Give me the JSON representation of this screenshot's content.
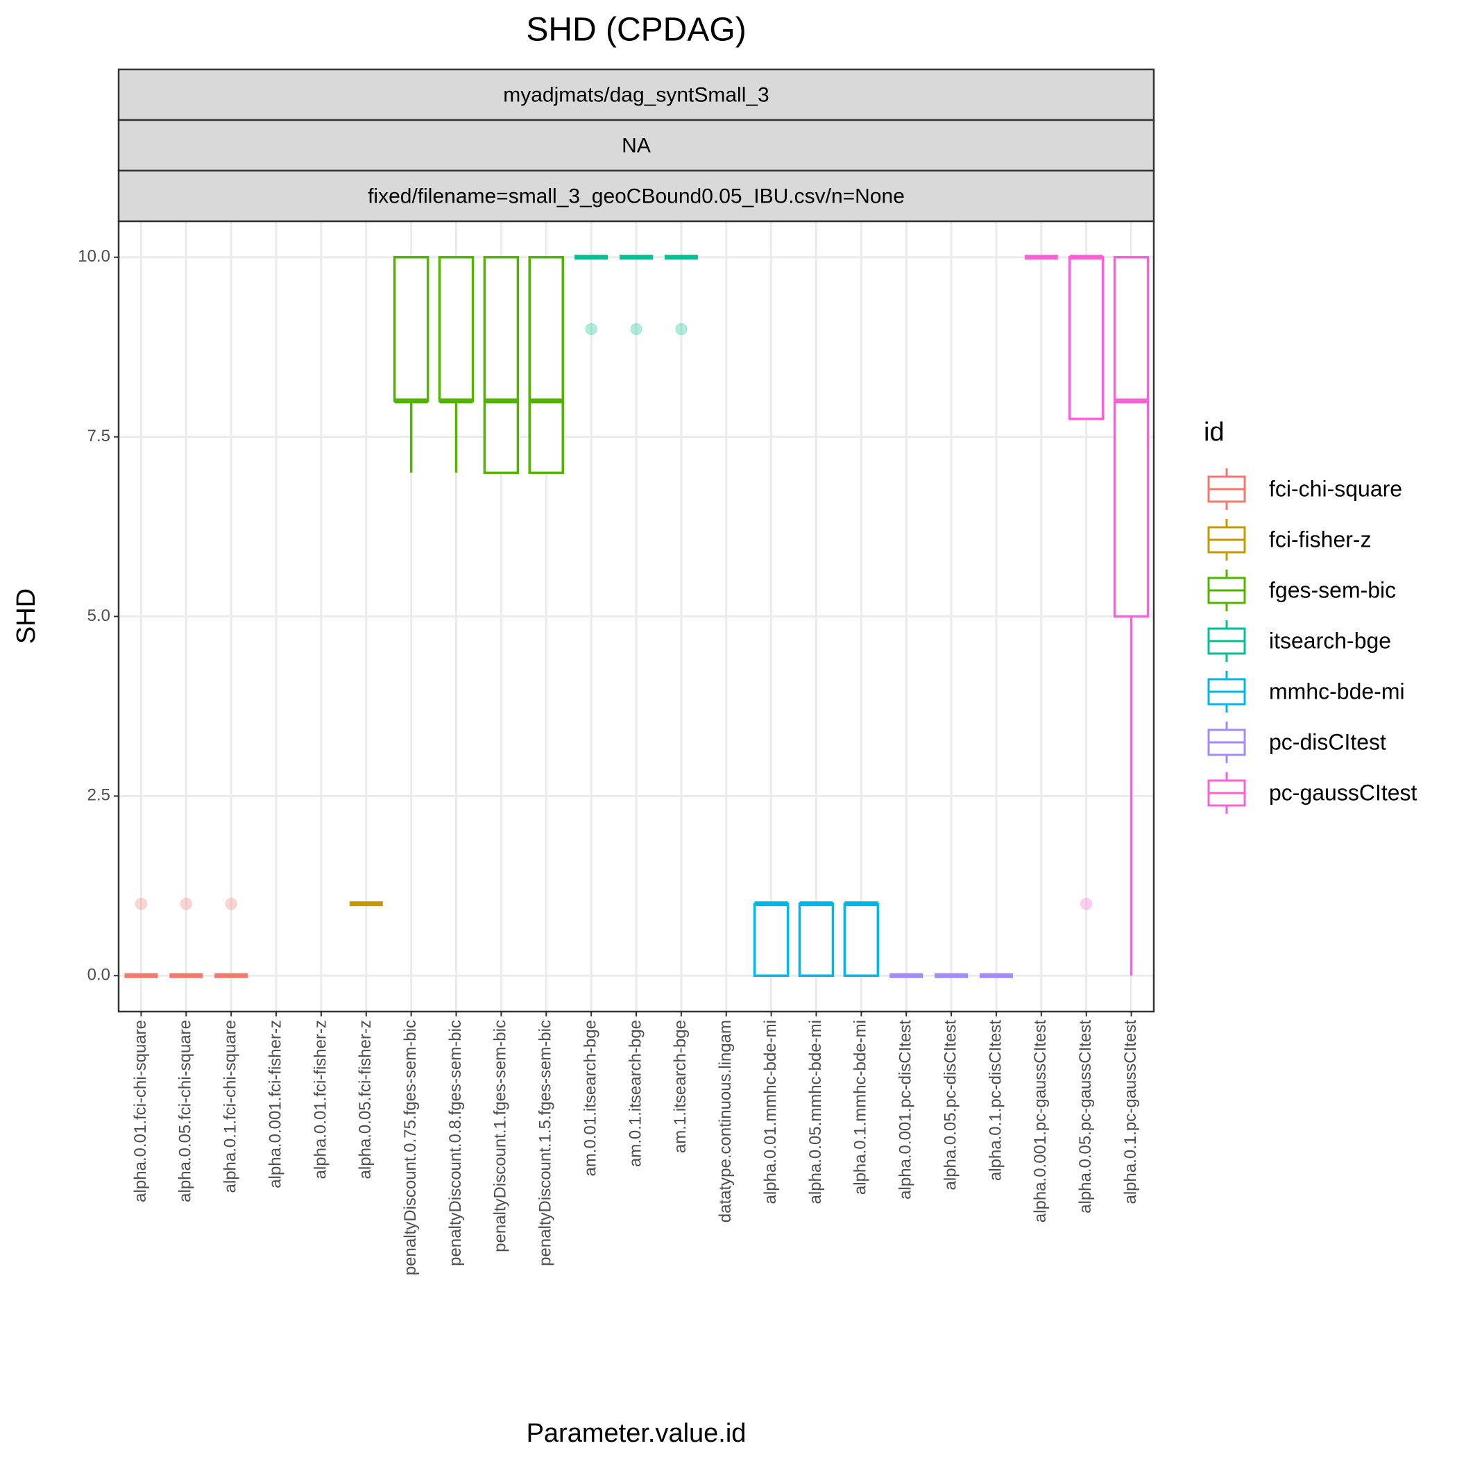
{
  "chart_data": {
    "type": "box",
    "title": "SHD (CPDAG)",
    "strips": [
      "myadjmats/dag_syntSmall_3",
      "NA",
      "fixed/filename=small_3_geoCBound0.05_IBU.csv/n=None"
    ],
    "x_label": "Parameter.value.id",
    "y_label": "SHD",
    "legend_title": "id",
    "categories": [
      "alpha.0.01.fci-chi-square",
      "alpha.0.05.fci-chi-square",
      "alpha.0.1.fci-chi-square",
      "alpha.0.001.fci-fisher-z",
      "alpha.0.01.fci-fisher-z",
      "alpha.0.05.fci-fisher-z",
      "penaltyDiscount.0.75.fges-sem-bic",
      "penaltyDiscount.0.8.fges-sem-bic",
      "penaltyDiscount.1.fges-sem-bic",
      "penaltyDiscount.1.5.fges-sem-bic",
      "am.0.01.itsearch-bge",
      "am.0.1.itsearch-bge",
      "am.1.itsearch-bge",
      "datatype.continuous.lingam",
      "alpha.0.01.mmhc-bde-mi",
      "alpha.0.05.mmhc-bde-mi",
      "alpha.0.1.mmhc-bde-mi",
      "alpha.0.001.pc-disCItest",
      "alpha.0.05.pc-disCItest",
      "alpha.0.1.pc-disCItest",
      "alpha.0.001.pc-gaussCItest",
      "alpha.0.05.pc-gaussCItest",
      "alpha.0.1.pc-gaussCItest"
    ],
    "ylim": [
      -0.5,
      10.5
    ],
    "yticks": [
      {
        "value": 0,
        "label": "0.0"
      },
      {
        "value": 2.5,
        "label": "2.5"
      },
      {
        "value": 5,
        "label": "5.0"
      },
      {
        "value": 7.5,
        "label": "7.5"
      },
      {
        "value": 10,
        "label": "10.0"
      }
    ],
    "grid": true,
    "legend_position": "right",
    "series": [
      {
        "name": "fci-chi-square",
        "color": "#F8766D",
        "min": [
          0,
          0,
          0,
          null,
          null,
          null,
          null,
          null,
          null,
          null,
          null,
          null,
          null,
          null,
          null,
          null,
          null,
          null,
          null,
          null,
          null,
          null,
          null
        ],
        "q1": [
          0,
          0,
          0,
          null,
          null,
          null,
          null,
          null,
          null,
          null,
          null,
          null,
          null,
          null,
          null,
          null,
          null,
          null,
          null,
          null,
          null,
          null,
          null
        ],
        "median": [
          0,
          0,
          0,
          null,
          null,
          null,
          null,
          null,
          null,
          null,
          null,
          null,
          null,
          null,
          null,
          null,
          null,
          null,
          null,
          null,
          null,
          null,
          null
        ],
        "q3": [
          0,
          0,
          0,
          null,
          null,
          null,
          null,
          null,
          null,
          null,
          null,
          null,
          null,
          null,
          null,
          null,
          null,
          null,
          null,
          null,
          null,
          null,
          null
        ],
        "max": [
          0,
          0,
          0,
          null,
          null,
          null,
          null,
          null,
          null,
          null,
          null,
          null,
          null,
          null,
          null,
          null,
          null,
          null,
          null,
          null,
          null,
          null,
          null
        ],
        "outliers": [
          [
            1
          ],
          [
            1
          ],
          [
            1
          ],
          null,
          null,
          null,
          null,
          null,
          null,
          null,
          null,
          null,
          null,
          null,
          null,
          null,
          null,
          null,
          null,
          null,
          null,
          null,
          null
        ]
      },
      {
        "name": "fci-fisher-z",
        "color": "#C49A00",
        "min": [
          null,
          null,
          null,
          null,
          null,
          1,
          null,
          null,
          null,
          null,
          null,
          null,
          null,
          null,
          null,
          null,
          null,
          null,
          null,
          null,
          null,
          null,
          null
        ],
        "q1": [
          null,
          null,
          null,
          null,
          null,
          1,
          null,
          null,
          null,
          null,
          null,
          null,
          null,
          null,
          null,
          null,
          null,
          null,
          null,
          null,
          null,
          null,
          null
        ],
        "median": [
          null,
          null,
          null,
          null,
          null,
          1,
          null,
          null,
          null,
          null,
          null,
          null,
          null,
          null,
          null,
          null,
          null,
          null,
          null,
          null,
          null,
          null,
          null
        ],
        "q3": [
          null,
          null,
          null,
          null,
          null,
          1,
          null,
          null,
          null,
          null,
          null,
          null,
          null,
          null,
          null,
          null,
          null,
          null,
          null,
          null,
          null,
          null,
          null
        ],
        "max": [
          null,
          null,
          null,
          null,
          null,
          1,
          null,
          null,
          null,
          null,
          null,
          null,
          null,
          null,
          null,
          null,
          null,
          null,
          null,
          null,
          null,
          null,
          null
        ],
        "outliers": [
          null,
          null,
          null,
          null,
          null,
          [],
          null,
          null,
          null,
          null,
          null,
          null,
          null,
          null,
          null,
          null,
          null,
          null,
          null,
          null,
          null,
          null,
          null
        ]
      },
      {
        "name": "fges-sem-bic",
        "color": "#53B400",
        "min": [
          null,
          null,
          null,
          null,
          null,
          null,
          7,
          7,
          7,
          7,
          null,
          null,
          null,
          null,
          null,
          null,
          null,
          null,
          null,
          null,
          null,
          null,
          null
        ],
        "q1": [
          null,
          null,
          null,
          null,
          null,
          null,
          8,
          8,
          7,
          7,
          null,
          null,
          null,
          null,
          null,
          null,
          null,
          null,
          null,
          null,
          null,
          null,
          null
        ],
        "median": [
          null,
          null,
          null,
          null,
          null,
          null,
          8,
          8,
          8,
          8,
          null,
          null,
          null,
          null,
          null,
          null,
          null,
          null,
          null,
          null,
          null,
          null,
          null
        ],
        "q3": [
          null,
          null,
          null,
          null,
          null,
          null,
          10,
          10,
          10,
          10,
          null,
          null,
          null,
          null,
          null,
          null,
          null,
          null,
          null,
          null,
          null,
          null,
          null
        ],
        "max": [
          null,
          null,
          null,
          null,
          null,
          null,
          10,
          10,
          10,
          10,
          null,
          null,
          null,
          null,
          null,
          null,
          null,
          null,
          null,
          null,
          null,
          null,
          null
        ],
        "outliers": [
          null,
          null,
          null,
          null,
          null,
          null,
          [],
          [],
          [],
          [],
          null,
          null,
          null,
          null,
          null,
          null,
          null,
          null,
          null,
          null,
          null,
          null,
          null
        ]
      },
      {
        "name": "itsearch-bge",
        "color": "#00C094",
        "min": [
          null,
          null,
          null,
          null,
          null,
          null,
          null,
          null,
          null,
          null,
          10,
          10,
          10,
          null,
          null,
          null,
          null,
          null,
          null,
          null,
          null,
          null,
          null
        ],
        "q1": [
          null,
          null,
          null,
          null,
          null,
          null,
          null,
          null,
          null,
          null,
          10,
          10,
          10,
          null,
          null,
          null,
          null,
          null,
          null,
          null,
          null,
          null,
          null
        ],
        "median": [
          null,
          null,
          null,
          null,
          null,
          null,
          null,
          null,
          null,
          null,
          10,
          10,
          10,
          null,
          null,
          null,
          null,
          null,
          null,
          null,
          null,
          null,
          null
        ],
        "q3": [
          null,
          null,
          null,
          null,
          null,
          null,
          null,
          null,
          null,
          null,
          10,
          10,
          10,
          null,
          null,
          null,
          null,
          null,
          null,
          null,
          null,
          null,
          null
        ],
        "max": [
          null,
          null,
          null,
          null,
          null,
          null,
          null,
          null,
          null,
          null,
          10,
          10,
          10,
          null,
          null,
          null,
          null,
          null,
          null,
          null,
          null,
          null,
          null
        ],
        "outliers": [
          null,
          null,
          null,
          null,
          null,
          null,
          null,
          null,
          null,
          null,
          [
            9
          ],
          [
            9
          ],
          [
            9
          ],
          null,
          null,
          null,
          null,
          null,
          null,
          null,
          null,
          null,
          null
        ]
      },
      {
        "name": "mmhc-bde-mi",
        "color": "#00B6EB",
        "min": [
          null,
          null,
          null,
          null,
          null,
          null,
          null,
          null,
          null,
          null,
          null,
          null,
          null,
          null,
          0,
          0,
          0,
          null,
          null,
          null,
          null,
          null,
          null
        ],
        "q1": [
          null,
          null,
          null,
          null,
          null,
          null,
          null,
          null,
          null,
          null,
          null,
          null,
          null,
          null,
          0,
          0,
          0,
          null,
          null,
          null,
          null,
          null,
          null
        ],
        "median": [
          null,
          null,
          null,
          null,
          null,
          null,
          null,
          null,
          null,
          null,
          null,
          null,
          null,
          null,
          1,
          1,
          1,
          null,
          null,
          null,
          null,
          null,
          null
        ],
        "q3": [
          null,
          null,
          null,
          null,
          null,
          null,
          null,
          null,
          null,
          null,
          null,
          null,
          null,
          null,
          1,
          1,
          1,
          null,
          null,
          null,
          null,
          null,
          null
        ],
        "max": [
          null,
          null,
          null,
          null,
          null,
          null,
          null,
          null,
          null,
          null,
          null,
          null,
          null,
          null,
          1,
          1,
          1,
          null,
          null,
          null,
          null,
          null,
          null
        ],
        "outliers": [
          null,
          null,
          null,
          null,
          null,
          null,
          null,
          null,
          null,
          null,
          null,
          null,
          null,
          null,
          [],
          [],
          [],
          null,
          null,
          null,
          null,
          null,
          null
        ]
      },
      {
        "name": "pc-disCItest",
        "color": "#A58AFF",
        "min": [
          null,
          null,
          null,
          null,
          null,
          null,
          null,
          null,
          null,
          null,
          null,
          null,
          null,
          null,
          null,
          null,
          null,
          0,
          0,
          0,
          null,
          null,
          null
        ],
        "q1": [
          null,
          null,
          null,
          null,
          null,
          null,
          null,
          null,
          null,
          null,
          null,
          null,
          null,
          null,
          null,
          null,
          null,
          0,
          0,
          0,
          null,
          null,
          null
        ],
        "median": [
          null,
          null,
          null,
          null,
          null,
          null,
          null,
          null,
          null,
          null,
          null,
          null,
          null,
          null,
          null,
          null,
          null,
          0,
          0,
          0,
          null,
          null,
          null
        ],
        "q3": [
          null,
          null,
          null,
          null,
          null,
          null,
          null,
          null,
          null,
          null,
          null,
          null,
          null,
          null,
          null,
          null,
          null,
          0,
          0,
          0,
          null,
          null,
          null
        ],
        "max": [
          null,
          null,
          null,
          null,
          null,
          null,
          null,
          null,
          null,
          null,
          null,
          null,
          null,
          null,
          null,
          null,
          null,
          0,
          0,
          0,
          null,
          null,
          null
        ],
        "outliers": [
          null,
          null,
          null,
          null,
          null,
          null,
          null,
          null,
          null,
          null,
          null,
          null,
          null,
          null,
          null,
          null,
          null,
          [],
          [],
          [],
          null,
          null,
          null
        ]
      },
      {
        "name": "pc-gaussCItest",
        "color": "#FB61D7",
        "min": [
          null,
          null,
          null,
          null,
          null,
          null,
          null,
          null,
          null,
          null,
          null,
          null,
          null,
          null,
          null,
          null,
          null,
          null,
          null,
          null,
          10,
          7.75,
          0
        ],
        "q1": [
          null,
          null,
          null,
          null,
          null,
          null,
          null,
          null,
          null,
          null,
          null,
          null,
          null,
          null,
          null,
          null,
          null,
          null,
          null,
          null,
          10,
          7.75,
          5
        ],
        "median": [
          null,
          null,
          null,
          null,
          null,
          null,
          null,
          null,
          null,
          null,
          null,
          null,
          null,
          null,
          null,
          null,
          null,
          null,
          null,
          null,
          10,
          10,
          8
        ],
        "q3": [
          null,
          null,
          null,
          null,
          null,
          null,
          null,
          null,
          null,
          null,
          null,
          null,
          null,
          null,
          null,
          null,
          null,
          null,
          null,
          null,
          10,
          10,
          10
        ],
        "max": [
          null,
          null,
          null,
          null,
          null,
          null,
          null,
          null,
          null,
          null,
          null,
          null,
          null,
          null,
          null,
          null,
          null,
          null,
          null,
          null,
          10,
          10,
          10
        ],
        "outliers": [
          null,
          null,
          null,
          null,
          null,
          null,
          null,
          null,
          null,
          null,
          null,
          null,
          null,
          null,
          null,
          null,
          null,
          null,
          null,
          null,
          [],
          [
            1
          ],
          []
        ]
      }
    ]
  }
}
